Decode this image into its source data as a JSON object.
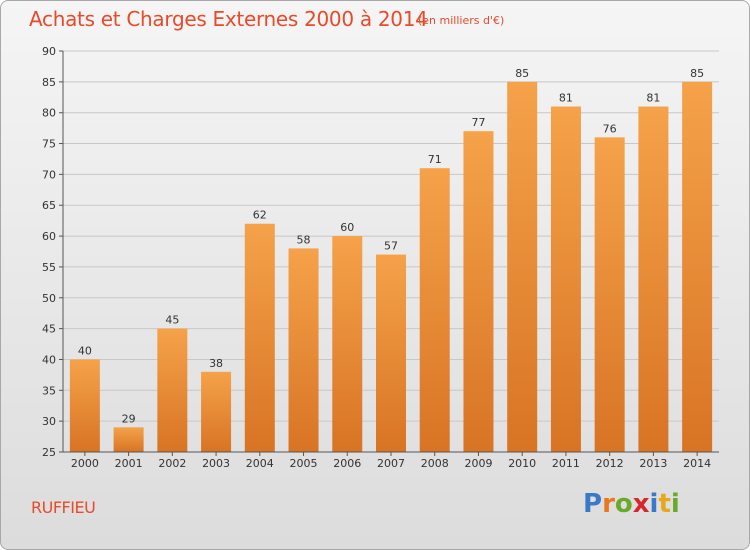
{
  "header": {
    "title": "Achats et Charges Externes 2000 à 2014",
    "subtitle": "(en milliers d'€)"
  },
  "footer": {
    "commune": "RUFFIEU",
    "logo": {
      "letters": [
        "P",
        "r",
        "o",
        "x",
        "i",
        "t",
        "i"
      ],
      "colors": [
        "#3a78c8",
        "#e8781e",
        "#6aaa2a",
        "#d8262e",
        "#3a78c8",
        "#e8a81e",
        "#6aaa2a"
      ]
    }
  },
  "colors": {
    "bar_top": "#f5a24a",
    "bar_bottom": "#d87424",
    "axis": "#555555",
    "grid": "#c8c8c8"
  },
  "chart_data": {
    "type": "bar",
    "categories": [
      "2000",
      "2001",
      "2002",
      "2003",
      "2004",
      "2005",
      "2006",
      "2007",
      "2008",
      "2009",
      "2010",
      "2011",
      "2012",
      "2013",
      "2014"
    ],
    "values": [
      40,
      29,
      45,
      38,
      62,
      58,
      60,
      57,
      71,
      77,
      85,
      81,
      76,
      81,
      85
    ],
    "ylim": [
      25,
      90
    ],
    "yticks": [
      25,
      30,
      35,
      40,
      45,
      50,
      55,
      60,
      65,
      70,
      75,
      80,
      85,
      90
    ],
    "grid": true,
    "data_labels": true
  }
}
